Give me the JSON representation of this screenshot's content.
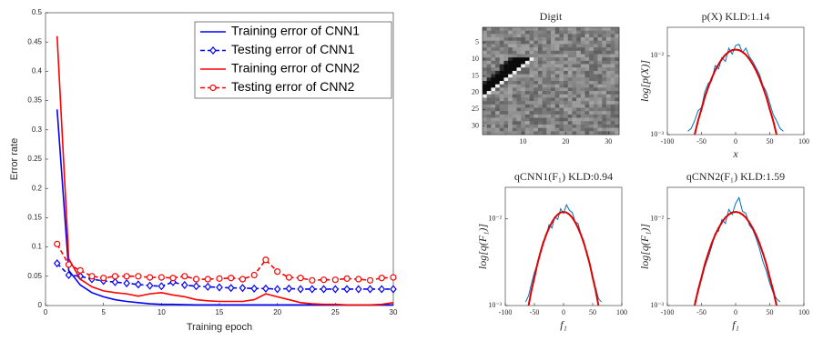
{
  "chart_data": [
    {
      "type": "line",
      "xlabel": "Training epoch",
      "ylabel": "Error rate",
      "x": [
        1,
        2,
        3,
        4,
        5,
        6,
        7,
        8,
        9,
        10,
        11,
        12,
        13,
        14,
        15,
        16,
        17,
        18,
        19,
        20,
        21,
        22,
        23,
        24,
        25,
        26,
        27,
        28,
        29,
        30
      ],
      "xlim": [
        0,
        30
      ],
      "xticks": [
        0,
        5,
        10,
        15,
        20,
        25,
        30
      ],
      "ylim": [
        0,
        0.5
      ],
      "yticks": [
        0,
        0.05,
        0.1,
        0.15,
        0.2,
        0.25,
        0.3,
        0.35,
        0.4,
        0.45,
        0.5
      ],
      "grid": false,
      "legend": "upper right",
      "series": [
        {
          "name": "Training error of CNN1",
          "color": "#0000ff",
          "marker": "none",
          "dash": "solid",
          "values": [
            0.335,
            0.06,
            0.035,
            0.022,
            0.015,
            0.01,
            0.007,
            0.005,
            0.003,
            0.002,
            0.002,
            0.0015,
            0.001,
            0.001,
            0.001,
            0.001,
            0.001,
            0.001,
            0.001,
            0.001,
            0.001,
            0.001,
            0.001,
            0.001,
            0.001,
            0.001,
            0.001,
            0.001,
            0.001,
            0.001
          ]
        },
        {
          "name": "Testing  error of CNN1",
          "color": "#0000ff",
          "marker": "diamond",
          "dash": "dashed",
          "values": [
            0.072,
            0.052,
            0.05,
            0.045,
            0.042,
            0.04,
            0.038,
            0.036,
            0.034,
            0.033,
            0.04,
            0.035,
            0.033,
            0.032,
            0.031,
            0.03,
            0.03,
            0.029,
            0.029,
            0.028,
            0.029,
            0.028,
            0.028,
            0.028,
            0.028,
            0.028,
            0.028,
            0.028,
            0.028,
            0.028
          ]
        },
        {
          "name": "Training error of CNN2",
          "color": "#ff0000",
          "marker": "none",
          "dash": "solid",
          "values": [
            0.46,
            0.08,
            0.045,
            0.032,
            0.025,
            0.022,
            0.02,
            0.016,
            0.02,
            0.022,
            0.018,
            0.015,
            0.01,
            0.008,
            0.007,
            0.007,
            0.007,
            0.01,
            0.02,
            0.015,
            0.01,
            0.005,
            0.003,
            0.002,
            0.002,
            0.001,
            0.001,
            0.001,
            0.002,
            0.005
          ]
        },
        {
          "name": "Testing  error of CNN2",
          "color": "#ff0000",
          "marker": "circle",
          "dash": "dashed",
          "values": [
            0.105,
            0.07,
            0.06,
            0.05,
            0.047,
            0.05,
            0.05,
            0.05,
            0.048,
            0.048,
            0.047,
            0.05,
            0.045,
            0.045,
            0.046,
            0.047,
            0.045,
            0.052,
            0.078,
            0.058,
            0.048,
            0.047,
            0.043,
            0.044,
            0.044,
            0.046,
            0.045,
            0.043,
            0.047,
            0.048
          ]
        }
      ]
    },
    {
      "type": "image",
      "title": "Digit",
      "xlim": [
        0.5,
        32.5
      ],
      "ylim": [
        0.5,
        32.5
      ],
      "xticks": [
        10,
        20,
        30
      ],
      "yticks": [
        5,
        10,
        15,
        20,
        25,
        30
      ]
    },
    {
      "type": "line",
      "title": "p(X) KLD:1.14",
      "xlabel": "x",
      "ylabel": "log[p(X)]",
      "log_y": true,
      "xlim": [
        -100,
        100
      ],
      "xticks": [
        -100,
        -50,
        0,
        50,
        100
      ],
      "ylim": [
        0.001,
        0.023
      ],
      "yticks": [
        {
          "value": 0.001,
          "label": "10⁻³"
        },
        {
          "value": 0.01,
          "label": "10⁻²"
        }
      ],
      "x": [
        -75,
        -70,
        -65,
        -60,
        -55,
        -50,
        -45,
        -40,
        -35,
        -30,
        -25,
        -20,
        -15,
        -10,
        -5,
        0,
        5,
        10,
        15,
        20,
        25,
        30,
        35,
        40,
        45,
        50,
        55,
        60,
        65,
        70,
        75
      ],
      "series": [
        {
          "color": "#0072bd",
          "width": 1,
          "values": [
            null,
            0.0011,
            0.0012,
            0.0015,
            0.002,
            0.0022,
            0.0035,
            0.0045,
            0.0048,
            0.0075,
            0.0068,
            0.0095,
            0.0085,
            0.0125,
            0.0105,
            0.0135,
            0.014,
            0.011,
            0.0125,
            0.0098,
            0.0085,
            0.007,
            0.0058,
            0.0042,
            0.0035,
            0.0025,
            0.0018,
            0.0015,
            0.0012,
            0.0011,
            null
          ]
        },
        {
          "color": "#e00000",
          "width": 2,
          "values": [
            null,
            null,
            null,
            0.001,
            0.0015,
            0.0021,
            0.003,
            0.004,
            0.0052,
            0.0065,
            0.0078,
            0.0091,
            0.0103,
            0.0112,
            0.0118,
            0.012,
            0.0118,
            0.0112,
            0.0103,
            0.0091,
            0.0078,
            0.0065,
            0.0052,
            0.004,
            0.003,
            0.0021,
            0.0015,
            0.001,
            null,
            null,
            null
          ]
        }
      ]
    },
    {
      "type": "line",
      "title": "qCNN1(F₁) KLD:0.94",
      "xlabel": "f₁",
      "ylabel": "log[q(F₁)]",
      "log_y": true,
      "xlim": [
        -100,
        100
      ],
      "xticks": [
        -100,
        -50,
        0,
        50,
        100
      ],
      "ylim": [
        0.001,
        0.023
      ],
      "yticks": [
        {
          "value": 0.001,
          "label": "10⁻³"
        },
        {
          "value": 0.01,
          "label": "10⁻²"
        }
      ],
      "x": [
        -75,
        -70,
        -65,
        -60,
        -55,
        -50,
        -45,
        -40,
        -35,
        -30,
        -25,
        -20,
        -15,
        -10,
        -5,
        0,
        5,
        10,
        15,
        20,
        25,
        30,
        35,
        40,
        45,
        50,
        55,
        60,
        65,
        70,
        75
      ],
      "series": [
        {
          "color": "#0072bd",
          "width": 1,
          "values": [
            null,
            null,
            0.0011,
            0.0013,
            0.0018,
            0.0024,
            0.003,
            0.0042,
            0.0055,
            0.0062,
            0.0085,
            0.0078,
            0.0105,
            0.0098,
            0.013,
            0.0115,
            0.0145,
            0.0125,
            0.0118,
            0.0092,
            0.0088,
            0.0065,
            0.0055,
            0.0038,
            0.003,
            0.0022,
            0.0016,
            0.0012,
            0.0011,
            null,
            null
          ]
        },
        {
          "color": "#e00000",
          "width": 2,
          "values": [
            null,
            null,
            null,
            0.001,
            0.0015,
            0.0021,
            0.003,
            0.004,
            0.0052,
            0.0065,
            0.0078,
            0.0091,
            0.0103,
            0.0112,
            0.0118,
            0.012,
            0.0118,
            0.0112,
            0.0103,
            0.0091,
            0.0078,
            0.0065,
            0.0052,
            0.004,
            0.003,
            0.0021,
            0.0015,
            0.001,
            null,
            null,
            null
          ]
        }
      ]
    },
    {
      "type": "line",
      "title": "qCNN2(F₁) KLD:1.59",
      "xlabel": "f₁",
      "ylabel": "log[q(F₁)]",
      "log_y": true,
      "xlim": [
        -100,
        100
      ],
      "xticks": [
        -100,
        -50,
        0,
        50,
        100
      ],
      "ylim": [
        0.001,
        0.023
      ],
      "yticks": [
        {
          "value": 0.001,
          "label": "10⁻³"
        },
        {
          "value": 0.01,
          "label": "10⁻²"
        }
      ],
      "x": [
        -75,
        -70,
        -65,
        -60,
        -55,
        -50,
        -45,
        -40,
        -35,
        -30,
        -25,
        -20,
        -15,
        -10,
        -5,
        0,
        5,
        10,
        15,
        20,
        25,
        30,
        35,
        40,
        45,
        50,
        55,
        60,
        65,
        70,
        75
      ],
      "series": [
        {
          "color": "#0072bd",
          "width": 1,
          "values": [
            null,
            null,
            null,
            0.0011,
            0.0014,
            0.002,
            0.0028,
            0.0036,
            0.0048,
            0.0068,
            0.0072,
            0.0098,
            0.0088,
            0.0128,
            0.0112,
            0.015,
            0.0175,
            0.0122,
            0.0115,
            0.0085,
            0.0075,
            0.006,
            0.0045,
            0.0032,
            0.0025,
            0.0018,
            0.0014,
            0.0012,
            0.0011,
            null,
            null
          ]
        },
        {
          "color": "#e00000",
          "width": 2,
          "values": [
            null,
            null,
            null,
            0.001,
            0.0015,
            0.0021,
            0.003,
            0.004,
            0.0052,
            0.0065,
            0.0078,
            0.0091,
            0.0103,
            0.0112,
            0.0118,
            0.012,
            0.0118,
            0.0112,
            0.0103,
            0.0091,
            0.0078,
            0.0065,
            0.0052,
            0.004,
            0.003,
            0.0021,
            0.0015,
            0.001,
            null,
            null,
            null
          ]
        }
      ]
    }
  ]
}
